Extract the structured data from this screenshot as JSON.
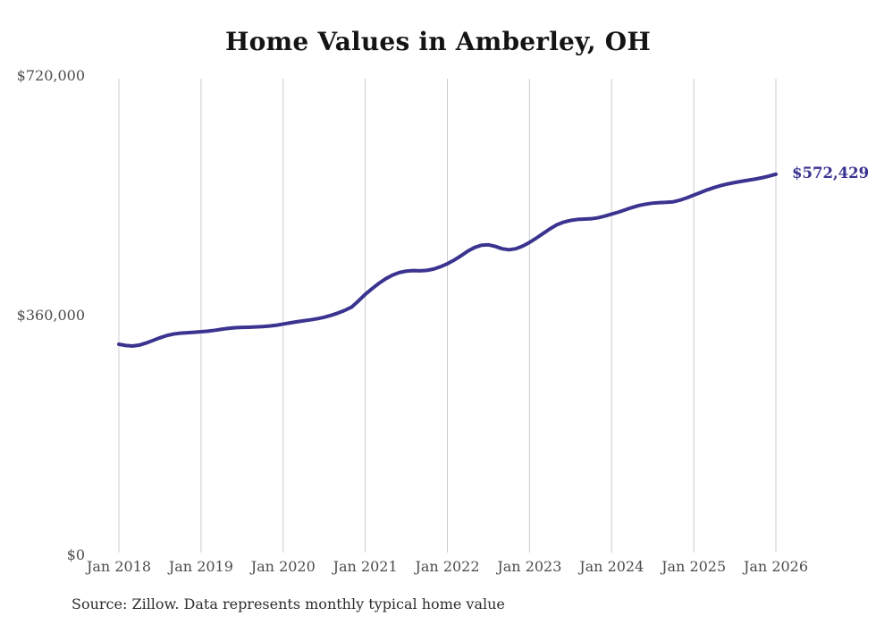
{
  "chart_data": {
    "type": "line",
    "title": "Home Values in Amberley, OH",
    "xlabel": "",
    "ylabel": "",
    "ylim": [
      0,
      720000
    ],
    "grid": "vertical-only",
    "frequency": "monthly",
    "x_start": "Jan 2018",
    "x_end": "Jan 2026",
    "x_tick_labels": [
      "Jan 2018",
      "Jan 2019",
      "Jan 2020",
      "Jan 2021",
      "Jan 2022",
      "Jan 2023",
      "Jan 2024",
      "Jan 2025",
      "Jan 2026"
    ],
    "y_ticks": [
      {
        "label": "$0",
        "value": 0
      },
      {
        "label": "$360,000",
        "value": 360000
      },
      {
        "label": "$720,000",
        "value": 720000
      }
    ],
    "series": [
      {
        "name": "Typical home value",
        "values": [
          317000,
          315200,
          314300,
          315800,
          318900,
          322800,
          326700,
          330100,
          332400,
          333600,
          334300,
          335000,
          335800,
          336700,
          337900,
          339500,
          340900,
          341800,
          342300,
          342600,
          343000,
          343600,
          344400,
          345600,
          347300,
          349100,
          350800,
          352300,
          353700,
          355400,
          357600,
          360400,
          363800,
          367900,
          372800,
          382000,
          392000,
          400500,
          408500,
          415500,
          421000,
          424800,
          426800,
          427600,
          427400,
          428000,
          430000,
          433500,
          438000,
          443500,
          450000,
          457000,
          462500,
          465800,
          466400,
          464000,
          460500,
          459000,
          460500,
          464500,
          470000,
          476500,
          483500,
          490500,
          496500,
          500500,
          503000,
          504500,
          505000,
          505500,
          507000,
          509500,
          512500,
          515500,
          519000,
          522500,
          525500,
          527500,
          529000,
          529800,
          530200,
          531000,
          533500,
          537000,
          541000,
          545000,
          549000,
          552500,
          555500,
          558000,
          560000,
          561800,
          563500,
          565200,
          567200,
          569600,
          572429
        ]
      }
    ],
    "last_value": 572429,
    "end_label": "$572,429",
    "line_color": "#3a3490",
    "grid_color": "#cccccc",
    "axis_text_color": "#4d4d4d",
    "title_color": "#141414",
    "source_note": "Source: Zillow. Data represents monthly typical home value"
  }
}
